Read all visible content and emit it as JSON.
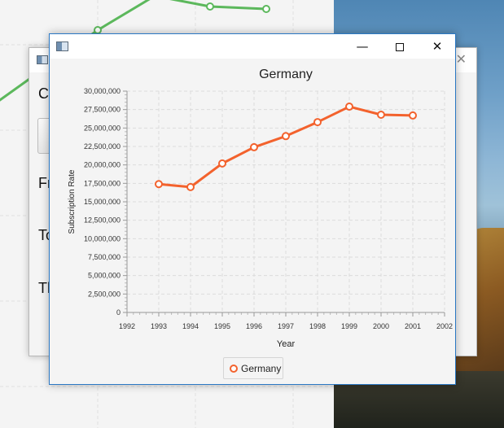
{
  "front_window": {
    "chart_title": "Germany",
    "legend_label": "Germany",
    "window_controls": {
      "minimize": "—",
      "close": "✕"
    }
  },
  "mid_window": {
    "labels": [
      "Ca",
      "Fr",
      "To",
      "Th"
    ],
    "close_glyph": "✕"
  },
  "colors": {
    "series_line": "#f3622d",
    "background_series": "#5cb85c",
    "grid": "#dcdcdc",
    "window_border": "#2b78c4"
  },
  "chart_data": {
    "type": "line",
    "title": "Germany",
    "xlabel": "Year",
    "ylabel": "Subscription Rate",
    "xlim": [
      1992,
      2002
    ],
    "ylim": [
      0,
      30000000
    ],
    "x_ticks": [
      "1992",
      "1993",
      "1994",
      "1995",
      "1996",
      "1997",
      "1998",
      "1999",
      "2000",
      "2001",
      "2002"
    ],
    "y_ticks": [
      "0",
      "2,500,000",
      "5,000,000",
      "7,500,000",
      "10,000,000",
      "12,500,000",
      "15,000,000",
      "17,500,000",
      "20,000,000",
      "22,500,000",
      "25,000,000",
      "27,500,000",
      "30,000,000"
    ],
    "grid": true,
    "legend_position": "bottom",
    "series": [
      {
        "name": "Germany",
        "x": [
          1993,
          1994,
          1995,
          1996,
          1997,
          1998,
          1999,
          2000,
          2001
        ],
        "values": [
          17400000,
          17000000,
          20200000,
          22400000,
          23900000,
          25800000,
          27900000,
          26800000,
          26700000
        ]
      }
    ]
  }
}
